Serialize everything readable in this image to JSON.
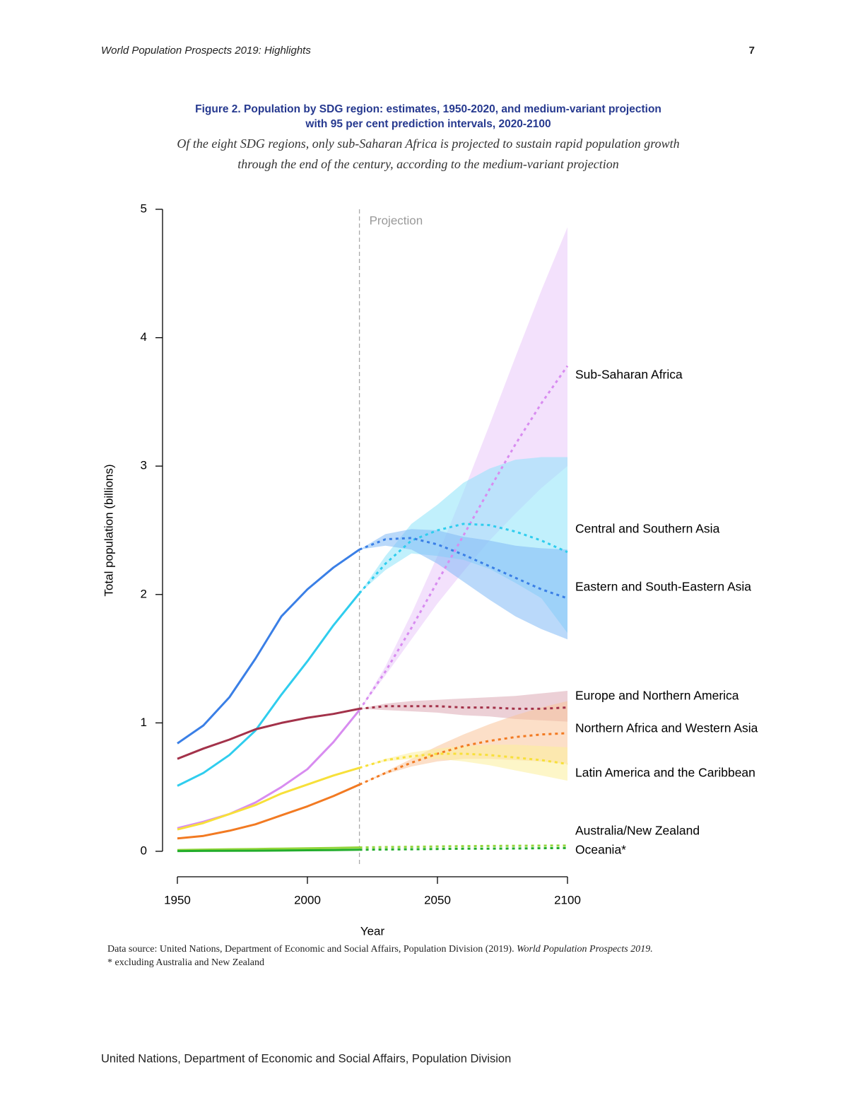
{
  "header": {
    "running_title": "World Population Prospects 2019: Highlights",
    "page_number": "7"
  },
  "chart_data": {
    "type": "line",
    "title": [
      "Figure 2. Population by SDG region: estimates, 1950-2020, and medium-variant projection",
      "with 95 per cent prediction intervals, 2020-2100"
    ],
    "subtitle": [
      "Of the eight SDG regions, only sub-Saharan Africa is projected to sustain rapid population growth",
      "through the end of the century, according to the medium-variant projection"
    ],
    "x_label": "Year",
    "y_label": "Total population (billions)",
    "annotation": "Projection",
    "projection_x": 2020,
    "xlim": [
      1944,
      2106
    ],
    "ylim": [
      -0.2,
      5
    ],
    "xticks": [
      1950,
      2000,
      2050,
      2100
    ],
    "yticks": [
      0,
      1,
      2,
      3,
      4,
      5
    ],
    "x": [
      1950,
      1960,
      1970,
      1980,
      1990,
      2000,
      2010,
      2020,
      2030,
      2040,
      2050,
      2060,
      2070,
      2080,
      2090,
      2100
    ],
    "series": [
      {
        "name": "Sub-Saharan Africa",
        "color": "#d88cf0",
        "band_color": "#e9c8fa",
        "values": [
          0.18,
          0.23,
          0.29,
          0.38,
          0.5,
          0.64,
          0.85,
          1.1,
          null,
          null,
          null,
          null,
          null,
          null,
          null,
          null
        ],
        "projection": [
          null,
          null,
          null,
          null,
          null,
          null,
          null,
          1.1,
          1.4,
          1.74,
          2.1,
          2.46,
          2.82,
          3.17,
          3.49,
          3.78
        ],
        "lower": [
          null,
          null,
          null,
          null,
          null,
          null,
          null,
          1.1,
          1.37,
          1.65,
          1.93,
          2.18,
          2.42,
          2.63,
          2.83,
          3.0
        ],
        "upper": [
          null,
          null,
          null,
          null,
          null,
          null,
          null,
          1.1,
          1.44,
          1.85,
          2.3,
          2.8,
          3.32,
          3.85,
          4.37,
          4.86
        ]
      },
      {
        "name": "Central and Southern Asia",
        "color": "#2fcdee",
        "band_color": "#8ee4fa",
        "values": [
          0.51,
          0.61,
          0.75,
          0.94,
          1.22,
          1.48,
          1.76,
          2.01,
          null,
          null,
          null,
          null,
          null,
          null,
          null,
          null
        ],
        "projection": [
          null,
          null,
          null,
          null,
          null,
          null,
          null,
          2.01,
          2.24,
          2.42,
          2.5,
          2.55,
          2.54,
          2.49,
          2.42,
          2.33
        ],
        "lower": [
          null,
          null,
          null,
          null,
          null,
          null,
          null,
          2.01,
          2.19,
          2.32,
          2.3,
          2.27,
          2.2,
          2.09,
          1.97,
          1.7
        ],
        "upper": [
          null,
          null,
          null,
          null,
          null,
          null,
          null,
          2.01,
          2.3,
          2.55,
          2.7,
          2.87,
          2.98,
          3.05,
          3.07,
          3.07
        ]
      },
      {
        "name": "Eastern and South-Eastern Asia",
        "color": "#3a7fe6",
        "band_color": "#82b9f6",
        "values": [
          0.84,
          0.98,
          1.2,
          1.5,
          1.83,
          2.04,
          2.21,
          2.35,
          null,
          null,
          null,
          null,
          null,
          null,
          null,
          null
        ],
        "projection": [
          null,
          null,
          null,
          null,
          null,
          null,
          null,
          2.35,
          2.43,
          2.44,
          2.39,
          2.31,
          2.22,
          2.13,
          2.04,
          1.97
        ],
        "lower": [
          null,
          null,
          null,
          null,
          null,
          null,
          null,
          2.35,
          2.38,
          2.35,
          2.24,
          2.1,
          1.96,
          1.83,
          1.73,
          1.65
        ],
        "upper": [
          null,
          null,
          null,
          null,
          null,
          null,
          null,
          2.35,
          2.47,
          2.51,
          2.5,
          2.45,
          2.42,
          2.38,
          2.36,
          2.35
        ]
      },
      {
        "name": "Europe and Northern America",
        "color": "#a3324a",
        "band_color": "#dcaab4",
        "values": [
          0.72,
          0.8,
          0.87,
          0.95,
          1.0,
          1.04,
          1.07,
          1.11,
          null,
          null,
          null,
          null,
          null,
          null,
          null,
          null
        ],
        "projection": [
          null,
          null,
          null,
          null,
          null,
          null,
          null,
          1.11,
          1.13,
          1.13,
          1.13,
          1.12,
          1.12,
          1.11,
          1.11,
          1.12
        ],
        "lower": [
          null,
          null,
          null,
          null,
          null,
          null,
          null,
          1.11,
          1.1,
          1.09,
          1.08,
          1.06,
          1.05,
          1.03,
          1.02,
          1.01
        ],
        "upper": [
          null,
          null,
          null,
          null,
          null,
          null,
          null,
          1.11,
          1.15,
          1.17,
          1.18,
          1.19,
          1.2,
          1.21,
          1.23,
          1.25
        ]
      },
      {
        "name": "Northern Africa and Western Asia",
        "color": "#f27a22",
        "band_color": "#f9c49a",
        "values": [
          0.1,
          0.12,
          0.16,
          0.21,
          0.28,
          0.35,
          0.43,
          0.52,
          null,
          null,
          null,
          null,
          null,
          null,
          null,
          null
        ],
        "projection": [
          null,
          null,
          null,
          null,
          null,
          null,
          null,
          0.52,
          0.61,
          0.69,
          0.76,
          0.82,
          0.86,
          0.89,
          0.91,
          0.92
        ],
        "lower": [
          null,
          null,
          null,
          null,
          null,
          null,
          null,
          0.52,
          0.6,
          0.66,
          0.7,
          0.72,
          0.72,
          0.71,
          0.7,
          0.68
        ],
        "upper": [
          null,
          null,
          null,
          null,
          null,
          null,
          null,
          0.52,
          0.62,
          0.72,
          0.82,
          0.91,
          0.99,
          1.06,
          1.12,
          1.17
        ]
      },
      {
        "name": "Latin America and the Caribbean",
        "color": "#f7e03a",
        "band_color": "#fbef9a",
        "values": [
          0.17,
          0.22,
          0.29,
          0.36,
          0.45,
          0.52,
          0.59,
          0.65,
          null,
          null,
          null,
          null,
          null,
          null,
          null,
          null
        ],
        "projection": [
          null,
          null,
          null,
          null,
          null,
          null,
          null,
          0.65,
          0.71,
          0.74,
          0.76,
          0.76,
          0.75,
          0.73,
          0.71,
          0.68
        ],
        "lower": [
          null,
          null,
          null,
          null,
          null,
          null,
          null,
          0.65,
          0.7,
          0.72,
          0.72,
          0.7,
          0.67,
          0.63,
          0.59,
          0.55
        ],
        "upper": [
          null,
          null,
          null,
          null,
          null,
          null,
          null,
          0.65,
          0.72,
          0.77,
          0.8,
          0.82,
          0.83,
          0.83,
          0.82,
          0.81
        ]
      },
      {
        "name": "Australia/New Zealand",
        "color": "#93d63c",
        "values": [
          0.01,
          0.013,
          0.016,
          0.018,
          0.021,
          0.023,
          0.026,
          0.03,
          null,
          null,
          null,
          null,
          null,
          null,
          null,
          null
        ],
        "projection": [
          null,
          null,
          null,
          null,
          null,
          null,
          null,
          0.03,
          0.033,
          0.035,
          0.038,
          0.04,
          0.042,
          0.043,
          0.044,
          0.045
        ]
      },
      {
        "name": "Oceania*",
        "color": "#22ad2c",
        "values": [
          0.002,
          0.003,
          0.004,
          0.005,
          0.006,
          0.008,
          0.01,
          0.012,
          null,
          null,
          null,
          null,
          null,
          null,
          null,
          null
        ],
        "projection": [
          null,
          null,
          null,
          null,
          null,
          null,
          null,
          0.012,
          0.014,
          0.016,
          0.018,
          0.02,
          0.021,
          0.022,
          0.024,
          0.025
        ]
      }
    ],
    "source": "Data source: United Nations, Department of Economic and Social Affairs, Population Division (2019). ",
    "source_italic": "World Population Prospects 2019.",
    "footnote": "* excluding Australia and New Zealand"
  },
  "footer": {
    "text": "United Nations, Department of Economic and Social Affairs, Population Division"
  }
}
